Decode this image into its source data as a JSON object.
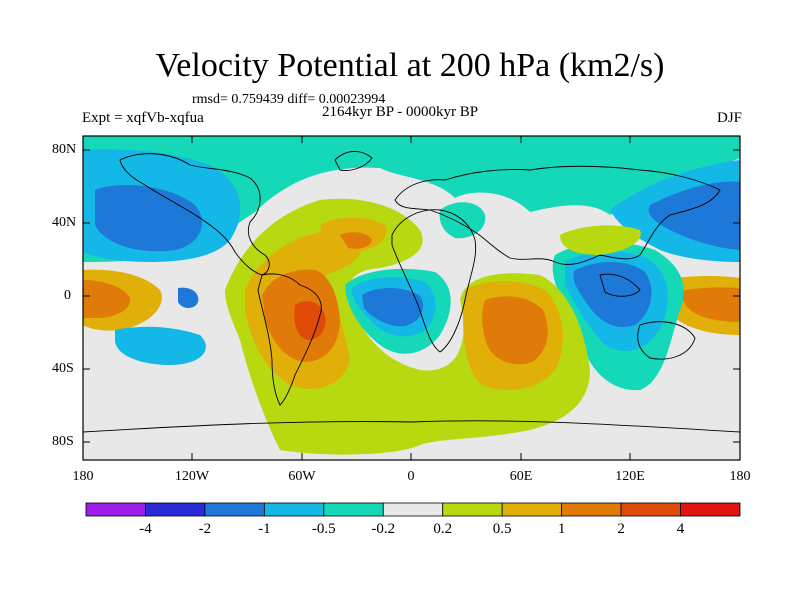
{
  "title": "Velocity Potential at 200 hPa (km2/s)",
  "stats": "rmsd= 0.759439 diff= 0.00023994",
  "expt": "Expt = xqfVb-xqfua",
  "period": "2164kyr BP - 0000kyr BP",
  "season": "DJF",
  "map": {
    "lat_ticks": [
      "80N",
      "40N",
      "0",
      "40S",
      "80S"
    ],
    "lon_ticks": [
      "180",
      "120W",
      "60W",
      "0",
      "60E",
      "120E",
      "180"
    ]
  },
  "colorbar": {
    "labels": [
      "-4",
      "-2",
      "-1",
      "-0.5",
      "-0.2",
      "0.2",
      "0.5",
      "1",
      "2",
      "4"
    ],
    "colors": [
      "#9b1fe8",
      "#2a2bd6",
      "#1e78d8",
      "#14b8e6",
      "#14d8b8",
      "#e8e8e8",
      "#b8d810",
      "#e0b008",
      "#e07a08",
      "#e04a08",
      "#e01410"
    ]
  }
}
